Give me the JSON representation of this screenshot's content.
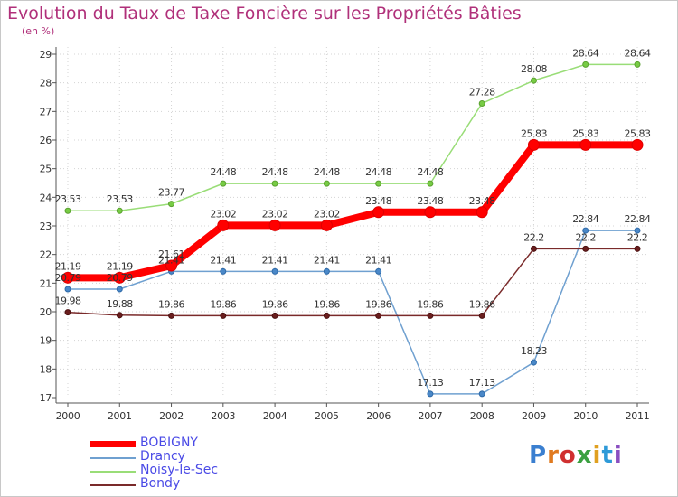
{
  "title": "Evolution du Taux de Taxe Foncière sur les Propriétés Bâties",
  "unit": "(en %)",
  "brand": "Proxiti",
  "colors": {
    "BOBIGNY": "#ff0000",
    "Drancy": "#6fa0d0",
    "Noisy-le-Sec": "#99dd77",
    "Bondy": "#7a2a2a",
    "title": "#b0307a",
    "legend_text": "#4a4ae6"
  },
  "chart_data": {
    "type": "line",
    "title": "Evolution du Taux de Taxe Foncière sur les Propriétés Bâties",
    "ylabel": "(en %)",
    "xlabel": "",
    "ylim": [
      17,
      29
    ],
    "yticks": [
      "17",
      "18",
      "19",
      "20",
      "21",
      "22",
      "23",
      "24",
      "25",
      "26",
      "27",
      "28",
      "29"
    ],
    "categories": [
      "2000",
      "2001",
      "2002",
      "2003",
      "2004",
      "2005",
      "2006",
      "2007",
      "2008",
      "2009",
      "2010",
      "2011"
    ],
    "series": [
      {
        "name": "Noisy-le-Sec",
        "values": [
          23.53,
          23.53,
          23.77,
          24.48,
          24.48,
          24.48,
          24.48,
          24.48,
          27.28,
          28.08,
          28.64,
          28.64
        ],
        "labels": [
          "23.53",
          "23.53",
          "23.77",
          "24.48",
          "24.48",
          "24.48",
          "24.48",
          "24.48",
          "27.28",
          "28.08",
          "28.64",
          "28.64"
        ]
      },
      {
        "name": "Drancy",
        "values": [
          20.79,
          20.79,
          21.41,
          21.41,
          21.41,
          21.41,
          21.41,
          17.13,
          17.13,
          18.23,
          22.84,
          22.84
        ],
        "labels": [
          "20.79",
          "20.79",
          "21.41",
          "21.41",
          "21.41",
          "21.41",
          "21.41",
          "17.13",
          "17.13",
          "18.23",
          "22.84",
          "22.84"
        ]
      },
      {
        "name": "Bondy",
        "values": [
          19.98,
          19.88,
          19.86,
          19.86,
          19.86,
          19.86,
          19.86,
          19.86,
          19.86,
          22.2,
          22.2,
          22.2
        ],
        "labels": [
          "19.98",
          "19.88",
          "19.86",
          "19.86",
          "19.86",
          "19.86",
          "19.86",
          "19.86",
          "19.86",
          "22.2",
          "22.2",
          "22.2"
        ]
      },
      {
        "name": "BOBIGNY",
        "values": [
          21.19,
          21.19,
          21.61,
          23.02,
          23.02,
          23.02,
          23.48,
          23.48,
          23.48,
          25.83,
          25.83,
          25.83
        ],
        "labels": [
          "21.19",
          "21.19",
          "21.61",
          "23.02",
          "23.02",
          "23.02",
          "23.48",
          "23.48",
          "23.48",
          "25.83",
          "25.83",
          "25.83"
        ]
      }
    ],
    "legend": [
      "BOBIGNY",
      "Drancy",
      "Noisy-le-Sec",
      "Bondy"
    ],
    "legend_position": "bottom-left"
  }
}
